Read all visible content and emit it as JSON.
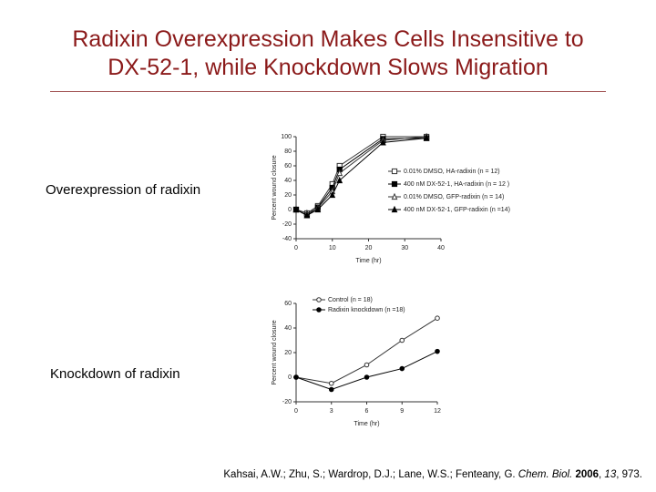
{
  "title": [
    "Radixin Overexpression Makes Cells Insensitive to",
    "DX-52-1, while Knockdown Slows Migration"
  ],
  "labels": [
    "Overexpression of radixin",
    "Knockdown of radixin"
  ],
  "citation": [
    "Kahsai, A.W.; Zhu, S.; Wardrop, D.J.; Lane, W.S.; Fenteany, G.",
    "Chem. Biol.",
    "2006",
    ", ",
    "13",
    ", 973."
  ],
  "chart_data": [
    {
      "type": "line",
      "x_label": "Time (hr)",
      "y_label": "Percent wound closure",
      "x": [
        0,
        3,
        6,
        10,
        12,
        24,
        36
      ],
      "series": [
        {
          "name": "0.01% DMSO, HA-radixin (n = 12)",
          "color": "#333333",
          "marker": "square-open",
          "values": [
            0,
            -5,
            5,
            35,
            60,
            100,
            100
          ]
        },
        {
          "name": "400 nM DX-52-1, HA-radixin (n = 12 )",
          "color": "#000000",
          "marker": "square-filled",
          "values": [
            0,
            -8,
            3,
            30,
            55,
            97,
            98
          ]
        },
        {
          "name": "0.01% DMSO, GFP-radixin (n = 14)",
          "color": "#333333",
          "marker": "triangle-open",
          "values": [
            0,
            -5,
            2,
            25,
            50,
            95,
            100
          ]
        },
        {
          "name": "400 nM DX-52-1, GFP-radixin (n =14)",
          "color": "#000000",
          "marker": "triangle-filled",
          "values": [
            0,
            -8,
            0,
            20,
            40,
            92,
            98
          ]
        }
      ],
      "xlim": [
        0,
        40
      ],
      "xticks": [
        0,
        10,
        20,
        30,
        40
      ],
      "ylim": [
        -40,
        100
      ],
      "yticks": [
        -40,
        -20,
        0,
        20,
        40,
        60,
        80,
        100
      ],
      "legend": "right"
    },
    {
      "type": "line",
      "x_label": "Time (hr)",
      "y_label": "Percent wound closure",
      "x": [
        0,
        3,
        6,
        9,
        12
      ],
      "series": [
        {
          "name": "Control (n = 18)",
          "color": "#333333",
          "marker": "circle-open",
          "values": [
            0,
            -5,
            10,
            30,
            48
          ]
        },
        {
          "name": "Radixin knockdown (n =18)",
          "color": "#000000",
          "marker": "circle-filled",
          "values": [
            0,
            -10,
            0,
            7,
            21
          ]
        }
      ],
      "xlim": [
        0,
        12
      ],
      "xticks": [
        0,
        3,
        6,
        9,
        12
      ],
      "ylim": [
        -20,
        60
      ],
      "yticks": [
        -20,
        0,
        20,
        40,
        60
      ],
      "legend": "upper left"
    }
  ]
}
